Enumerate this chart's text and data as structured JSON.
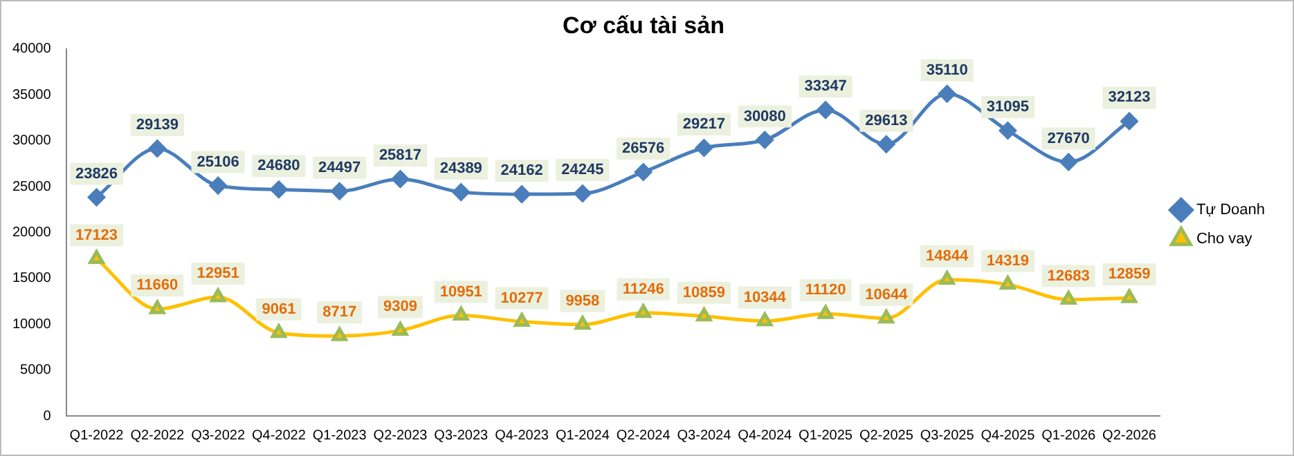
{
  "chart_data": {
    "type": "line",
    "title": "Cơ cấu tài sản",
    "categories": [
      "Q1-2022",
      "Q2-2022",
      "Q3-2022",
      "Q4-2022",
      "Q1-2023",
      "Q2-2023",
      "Q3-2023",
      "Q4-2023",
      "Q1-2024",
      "Q2-2024",
      "Q3-2024",
      "Q4-2024",
      "Q1-2025",
      "Q2-2025",
      "Q3-2025",
      "Q4-2025",
      "Q1-2026",
      "Q2-2026"
    ],
    "series": [
      {
        "name": "Tự Doanh",
        "color": "#4a7ebb",
        "marker": "diamond",
        "values": [
          23826,
          29139,
          25106,
          24680,
          24497,
          25817,
          24389,
          24162,
          24245,
          26576,
          29217,
          30080,
          33347,
          29613,
          35110,
          31095,
          27670,
          32123
        ]
      },
      {
        "name": "Cho vay",
        "color": "#ffc000",
        "marker": "triangle",
        "values": [
          17123,
          11660,
          12951,
          9061,
          8717,
          9309,
          10951,
          10277,
          9958,
          11246,
          10859,
          10344,
          11120,
          10644,
          14844,
          14319,
          12683,
          12859
        ]
      }
    ],
    "ylim": [
      0,
      40000
    ],
    "yticks": [
      0,
      5000,
      10000,
      15000,
      20000,
      25000,
      30000,
      35000,
      40000
    ],
    "grid": false,
    "legend": "right",
    "data_labels": true
  }
}
